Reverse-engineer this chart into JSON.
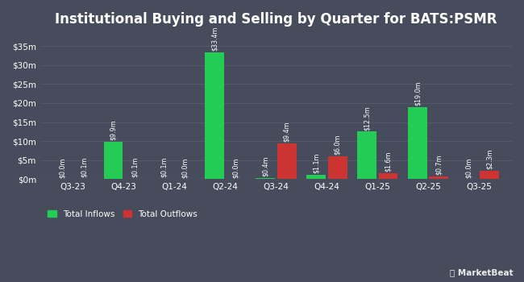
{
  "title": "Institutional Buying and Selling by Quarter for BATS:PSMR",
  "quarters": [
    "Q3-23",
    "Q4-23",
    "Q1-24",
    "Q2-24",
    "Q3-24",
    "Q4-24",
    "Q1-25",
    "Q2-25",
    "Q3-25"
  ],
  "inflows": [
    0.0,
    9.9,
    0.1,
    33.4,
    0.4,
    1.1,
    12.5,
    19.0,
    0.0
  ],
  "outflows": [
    0.1,
    0.1,
    0.0,
    0.0,
    9.4,
    6.0,
    1.6,
    0.7,
    2.3
  ],
  "inflow_labels": [
    "$0.0m",
    "$9.9m",
    "$0.1m",
    "$33.4m",
    "$0.4m",
    "$1.1m",
    "$12.5m",
    "$19.0m",
    "$0.0m"
  ],
  "outflow_labels": [
    "$0.1m",
    "$0.1m",
    "$0.0m",
    "$0.0m",
    "$9.4m",
    "$6.0m",
    "$1.6m",
    "$0.7m",
    "$2.3m"
  ],
  "inflow_color": "#22cc55",
  "outflow_color": "#cc3333",
  "bg_color": "#464C5B",
  "grid_color": "#565c6b",
  "text_color": "#ffffff",
  "bar_width": 0.38,
  "bar_gap": 0.04,
  "ylim": [
    0,
    38
  ],
  "yticks": [
    0,
    5,
    10,
    15,
    20,
    25,
    30,
    35
  ],
  "ytick_labels": [
    "$0m",
    "$5m",
    "$10m",
    "$15m",
    "$20m",
    "$25m",
    "$30m",
    "$35m"
  ],
  "legend_inflow": "Total Inflows",
  "legend_outflow": "Total Outflows",
  "title_fontsize": 12,
  "label_fontsize": 5.8,
  "tick_fontsize": 7.5,
  "legend_fontsize": 7.5
}
